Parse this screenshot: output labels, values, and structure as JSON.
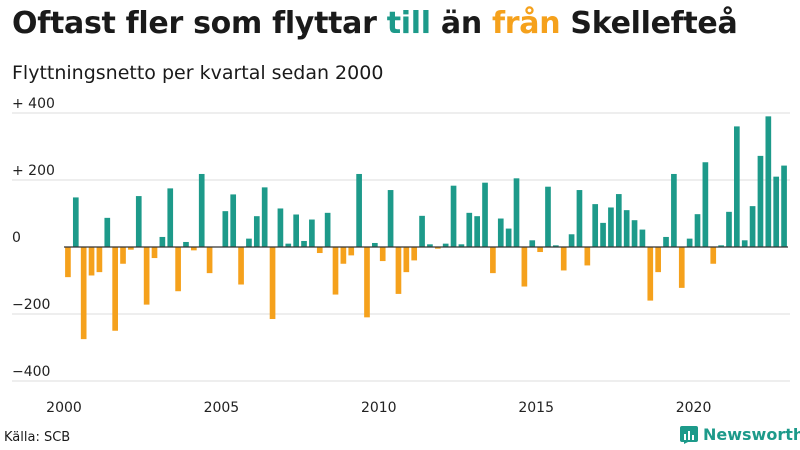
{
  "title": {
    "part1": "Oftast fler som flyttar ",
    "till": "till",
    "part2": " än ",
    "fran": "från",
    "part3": " Skellefteå"
  },
  "subtitle": "Flyttningsnetto per kvartal sedan 2000",
  "source": "Källa: SCB",
  "brand": {
    "name": "Newsworthy",
    "icon": "bar-chart-logo-icon"
  },
  "colors": {
    "positive": "#1d9a8a",
    "negative": "#f5a11c",
    "grid": "#dddddd",
    "zero_line": "#333333"
  },
  "chart_data": {
    "type": "bar",
    "ylim": [
      -400,
      400
    ],
    "y_ticks": [
      {
        "value": 400,
        "label": "+ 400"
      },
      {
        "value": 200,
        "label": "+ 200"
      },
      {
        "value": 0,
        "label": "0"
      },
      {
        "value": -200,
        "label": "−200"
      },
      {
        "value": -400,
        "label": "−400"
      }
    ],
    "x_ticks": [
      "2000",
      "2005",
      "2010",
      "2015",
      "2020"
    ],
    "grid": true,
    "start_year": 2000,
    "values": [
      -90,
      148,
      -275,
      -85,
      -75,
      87,
      -250,
      -50,
      -8,
      152,
      -172,
      -33,
      30,
      175,
      -132,
      15,
      -10,
      218,
      -78,
      0,
      107,
      157,
      -112,
      25,
      92,
      178,
      -215,
      115,
      10,
      97,
      18,
      82,
      -18,
      102,
      -142,
      -50,
      -25,
      218,
      -210,
      12,
      -42,
      170,
      -140,
      -75,
      -40,
      93,
      8,
      -5,
      10,
      183,
      8,
      102,
      92,
      192,
      -78,
      85,
      55,
      205,
      -118,
      20,
      -15,
      180,
      5,
      -70,
      38,
      170,
      -55,
      128,
      72,
      118,
      158,
      110,
      80,
      52,
      -160,
      -75,
      30,
      218,
      -122,
      25,
      98,
      253,
      -50,
      5,
      105,
      360,
      20,
      122,
      272,
      390,
      210,
      243
    ]
  }
}
